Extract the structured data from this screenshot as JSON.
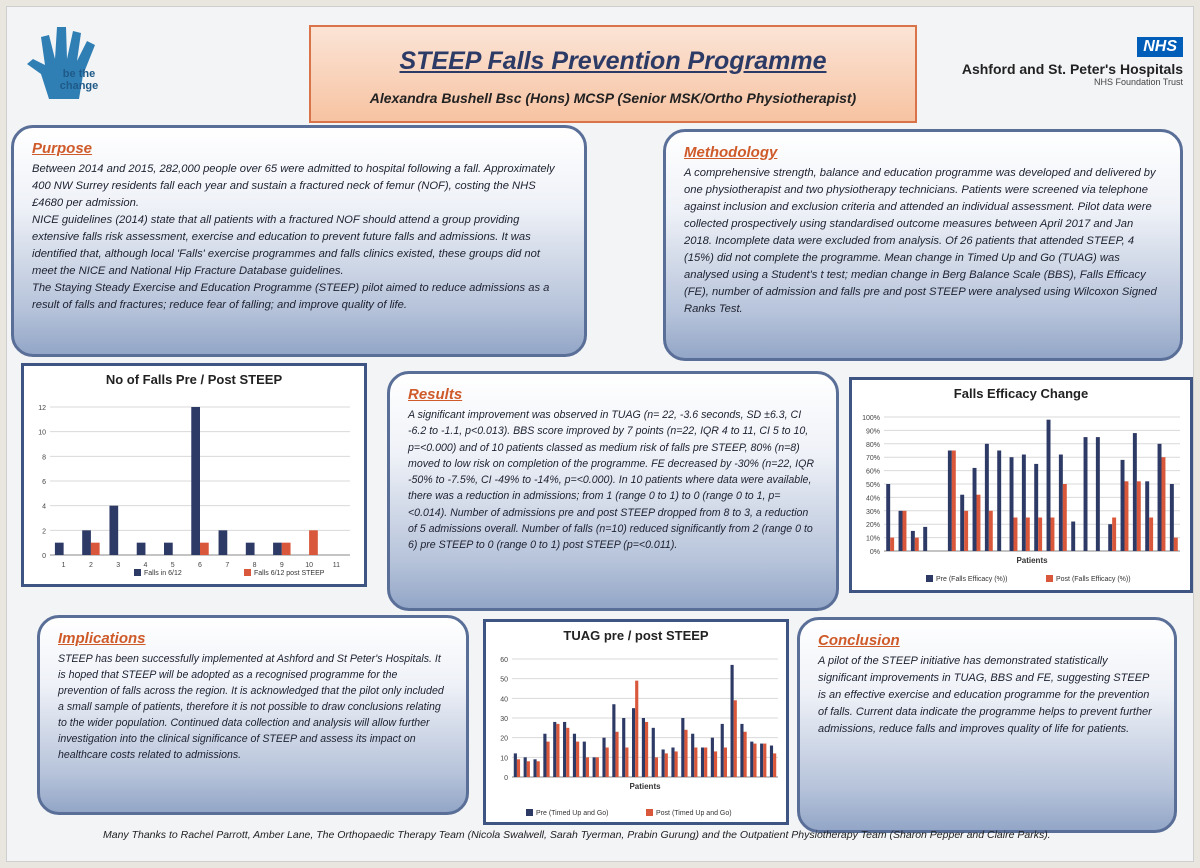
{
  "header": {
    "title": "STEEP Falls Prevention Programme",
    "author": "Alexandra Bushell Bsc (Hons) MCSP (Senior MSK/Ortho Physiotherapist)",
    "logo_text_1": "be the",
    "logo_text_2": "change",
    "nhs_badge": "NHS",
    "hospital_name": "Ashford and St. Peter's Hospitals",
    "trust_name": "NHS Foundation Trust"
  },
  "purpose": {
    "heading": "Purpose",
    "p1": "Between 2014 and 2015, 282,000 people over 65 were admitted to hospital following a fall. Approximately 400 NW Surrey residents fall each year and sustain a fractured neck of femur (NOF), costing the NHS £4680 per admission.",
    "p2": "NICE guidelines (2014) state that all patients with a fractured NOF should attend a group providing extensive falls risk assessment, exercise and education to prevent future falls and admissions. It was identified that, although local 'Falls' exercise programmes and falls clinics existed, these groups did not meet the NICE and National Hip Fracture Database guidelines.",
    "p3": "The Staying Steady Exercise and Education Programme (STEEP) pilot aimed to reduce admissions as a result of falls and fractures; reduce fear of falling; and improve quality of life."
  },
  "methodology": {
    "heading": "Methodology",
    "p1": "A comprehensive strength, balance and education programme was developed and delivered by one physiotherapist and two physiotherapy technicians. Patients were screened via telephone against inclusion and exclusion criteria and attended an individual assessment. Pilot data were collected prospectively using standardised outcome measures between April 2017 and Jan 2018. Incomplete data were excluded from analysis. Of 26 patients that attended STEEP, 4 (15%) did not complete the programme. Mean change in Timed Up and Go (TUAG) was analysed using a Student's t test; median change in Berg Balance Scale (BBS), Falls Efficacy (FE), number of admission and falls pre and post STEEP were analysed using Wilcoxon Signed Ranks Test."
  },
  "results": {
    "heading": "Results",
    "p1": "A significant improvement was observed in TUAG (n= 22, -3.6 seconds, SD ±6.3, CI -6.2 to -1.1, p<0.013). BBS score improved by 7 points (n=22, IQR 4 to 11, CI 5 to 10, p=<0.000) and of 10 patients classed as medium risk of falls pre STEEP, 80% (n=8) moved to low risk on completion of the programme. FE decreased by -30% (n=22, IQR -50% to -7.5%, CI -49% to -14%, p=<0.000). In 10 patients where data were available, there was a reduction in admissions; from 1 (range 0 to 1) to 0 (range 0 to 1, p=<0.014). Number of admissions pre and post STEEP dropped from 8 to 3, a reduction of 5 admissions overall. Number of falls (n=10) reduced significantly from 2 (range 0 to 6) pre STEEP to 0 (range 0 to 1) post STEEP (p=<0.011)."
  },
  "implications": {
    "heading": "Implications",
    "p1": "STEEP has been successfully implemented at Ashford and St Peter's Hospitals. It is hoped that STEEP will be adopted as a recognised programme for the prevention of falls across the region. It is acknowledged that the pilot only included a small sample of patients, therefore it is not possible to draw conclusions relating to the wider population.  Continued data collection and analysis will allow further investigation into the clinical significance of STEEP and assess its impact on healthcare costs related to admissions."
  },
  "conclusion": {
    "heading": "Conclusion",
    "p1": "A pilot of the STEEP initiative has demonstrated statistically significant improvements in TUAG, BBS and FE, suggesting STEEP is an effective exercise and education programme for the prevention of falls. Current data indicate the programme helps to prevent further admissions, reduce falls and improves quality of life for patients."
  },
  "footer": {
    "thanks": "Many Thanks to Rachel Parrott, Amber Lane, The Orthopaedic Therapy Team (Nicola Swalwell, Sarah Tyerman, Prabin Gurung) and the Outpatient Physiotherapy Team (Sharon Pepper and Claire Parks)."
  },
  "colors": {
    "pre": "#2e3a66",
    "post": "#d9573a",
    "accent": "#cf5a2a",
    "panel_border": "#5a6f98"
  },
  "chart_data": [
    {
      "type": "bar",
      "title": "No of Falls Pre / Post STEEP",
      "categories": [
        "1",
        "2",
        "3",
        "4",
        "5",
        "6",
        "7",
        "8",
        "9",
        "10",
        "11"
      ],
      "series": [
        {
          "name": "Falls in 6/12",
          "values": [
            1,
            2,
            4,
            1,
            1,
            12,
            2,
            1,
            1,
            0,
            0
          ]
        },
        {
          "name": "Falls 6/12 post STEEP",
          "values": [
            0,
            1,
            0,
            0,
            0,
            1,
            0,
            0,
            1,
            2,
            0
          ]
        }
      ],
      "ylim": [
        0,
        12
      ],
      "yticks": [
        "0",
        "2",
        "4",
        "6",
        "8",
        "10",
        "12"
      ]
    },
    {
      "type": "bar",
      "title": "Falls Efficacy Change",
      "xlabel": "Patients",
      "series": [
        {
          "name": "Pre (Falls Efficacy (%))",
          "values": [
            50,
            30,
            15,
            18,
            0,
            75,
            42,
            62,
            80,
            75,
            70,
            72,
            65,
            98,
            72,
            22,
            85,
            85,
            20,
            68,
            88,
            52,
            80,
            50
          ]
        },
        {
          "name": "Post (Falls Efficacy (%))",
          "values": [
            10,
            30,
            10,
            0,
            0,
            75,
            30,
            42,
            30,
            0,
            25,
            25,
            25,
            25,
            50,
            0,
            0,
            0,
            25,
            52,
            52,
            25,
            70,
            10
          ]
        }
      ],
      "ylim": [
        0,
        100
      ],
      "yticks": [
        "0%",
        "10%",
        "20%",
        "30%",
        "40%",
        "50%",
        "60%",
        "70%",
        "80%",
        "90%",
        "100%"
      ]
    },
    {
      "type": "bar",
      "title": "TUAG pre / post STEEP",
      "xlabel": "Patients",
      "series": [
        {
          "name": "Pre (Timed Up and Go)",
          "values": [
            12,
            10,
            9,
            22,
            28,
            28,
            22,
            18,
            10,
            20,
            37,
            30,
            35,
            30,
            25,
            14,
            15,
            30,
            22,
            15,
            20,
            27,
            57,
            27,
            18,
            17,
            16
          ]
        },
        {
          "name": "Post (Timed Up and Go)",
          "values": [
            9,
            8,
            8,
            18,
            27,
            25,
            18,
            10,
            10,
            15,
            23,
            15,
            49,
            28,
            10,
            12,
            13,
            24,
            15,
            15,
            13,
            15,
            39,
            23,
            17,
            17,
            12
          ]
        }
      ],
      "ylim": [
        0,
        60
      ],
      "yticks": [
        "0",
        "10",
        "20",
        "30",
        "40",
        "50",
        "60"
      ]
    }
  ]
}
